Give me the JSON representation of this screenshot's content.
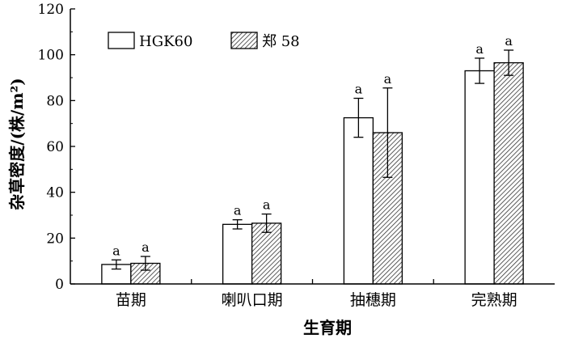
{
  "chart_data": {
    "type": "bar",
    "xlabel": "生育期",
    "ylabel": "杂草密度/(株/m²)",
    "ylim": [
      0,
      120
    ],
    "yticks": [
      0,
      20,
      40,
      60,
      80,
      100,
      120
    ],
    "grid": false,
    "legend_position": "top-left",
    "categories": [
      "苗期",
      "喇叭口期",
      "抽穗期",
      "完熟期"
    ],
    "series": [
      {
        "name": "HGK60",
        "pattern": "plain",
        "values": [
          8.5,
          26,
          72.5,
          93
        ],
        "errors": [
          2,
          2,
          8.5,
          5.5
        ],
        "significance": [
          "a",
          "a",
          "a",
          "a"
        ]
      },
      {
        "name": "郑 58",
        "pattern": "hatched",
        "values": [
          9,
          26.5,
          66,
          96.5
        ],
        "errors": [
          3,
          4,
          19.5,
          5.5
        ],
        "significance": [
          "a",
          "a",
          "a",
          "a"
        ]
      }
    ]
  },
  "colors": {
    "axis": "#000000",
    "bar_fill": "#ffffff",
    "hatch": "#333333"
  }
}
